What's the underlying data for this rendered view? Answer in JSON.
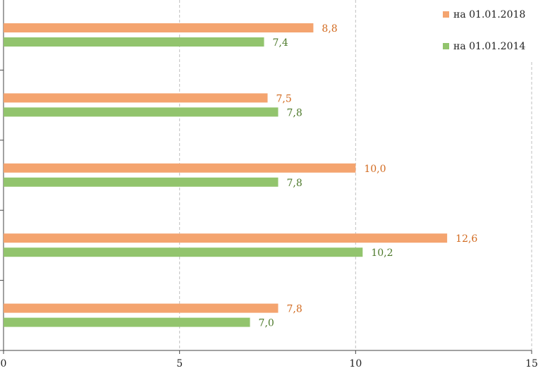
{
  "chart_data": {
    "type": "bar",
    "orientation": "horizontal",
    "title": "",
    "xlabel": "",
    "ylabel": "",
    "xlim": [
      0,
      15
    ],
    "xticks": [
      0,
      5,
      10,
      15
    ],
    "xtick_labels": [
      "0",
      "5",
      "10",
      "15"
    ],
    "grid": "vertical dashed",
    "legend_position": "top-right",
    "categories": [
      "",
      "",
      "",
      "",
      ""
    ],
    "series": [
      {
        "name": "на 01.01.2018",
        "color": "#f4a46f",
        "label_color": "#d26a1f",
        "values": [
          8.8,
          7.5,
          10.0,
          12.6,
          7.8
        ],
        "labels": [
          "8,8",
          "7,5",
          "10,0",
          "12,6",
          "7,8"
        ]
      },
      {
        "name": "на 01.01.2014",
        "color": "#92c46d",
        "label_color": "#4d7a2b",
        "values": [
          7.4,
          7.8,
          7.8,
          10.2,
          7.0
        ],
        "labels": [
          "7,4",
          "7,8",
          "7,8",
          "10,2",
          "7,0"
        ]
      }
    ]
  }
}
